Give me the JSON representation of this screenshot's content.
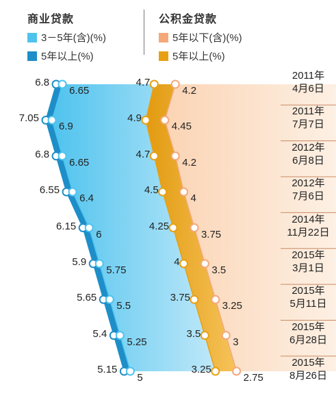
{
  "legend": {
    "commercial": {
      "title": "商业贷款",
      "items": [
        {
          "label": "3－5年(含)(%)",
          "color": "#4fc3ee"
        },
        {
          "label": "5年以上(%)",
          "color": "#1e8ec8"
        }
      ]
    },
    "provident": {
      "title": "公积金贷款",
      "items": [
        {
          "label": "5年以下(含)(%)",
          "color": "#f5a878"
        },
        {
          "label": "5年以上(%)",
          "color": "#e8a013"
        }
      ]
    }
  },
  "chart_data": {
    "type": "line",
    "orientation": "vertical",
    "categories": [
      [
        "2011年",
        "4月6日"
      ],
      [
        "2011年",
        "7月7日"
      ],
      [
        "2012年",
        "6月8日"
      ],
      [
        "2012年",
        "7月6日"
      ],
      [
        "2014年",
        "11月22日"
      ],
      [
        "2015年",
        "3月1日"
      ],
      [
        "2015年",
        "5月11日"
      ],
      [
        "2015年",
        "6月28日"
      ],
      [
        "2015年",
        "8月26日"
      ]
    ],
    "series": [
      {
        "name": "商业贷款 5年以上(%)",
        "values": [
          6.8,
          7.05,
          6.8,
          6.55,
          6.15,
          5.9,
          5.65,
          5.4,
          5.15
        ],
        "color": "#1e8ec8"
      },
      {
        "name": "商业贷款 3－5年(含)(%)",
        "values": [
          6.65,
          6.9,
          6.65,
          6.4,
          6,
          5.75,
          5.5,
          5.25,
          5
        ],
        "color": "#4fc3ee"
      },
      {
        "name": "公积金贷款 5年以上(%)",
        "values": [
          4.7,
          4.9,
          4.7,
          4.5,
          4.25,
          4,
          3.75,
          3.5,
          3.25
        ],
        "color": "#e8a013"
      },
      {
        "name": "公积金贷款 5年以下(含)(%)",
        "values": [
          4.2,
          4.45,
          4.2,
          4,
          3.75,
          3.5,
          3.25,
          3,
          2.75
        ],
        "color": "#f5a878"
      }
    ],
    "value_labels": {
      "s0": [
        "6.8",
        "7.05",
        "6.8",
        "6.55",
        "6.15",
        "5.9",
        "5.65",
        "5.4",
        "5.15"
      ],
      "s1": [
        "6.65",
        "6.9",
        "6.65",
        "6.4",
        "6",
        "5.75",
        "5.5",
        "5.25",
        "5"
      ],
      "s2": [
        "4.7",
        "4.9",
        "4.7",
        "4.5",
        "4.25",
        "4",
        "3.75",
        "3.5",
        "3.25"
      ],
      "s3": [
        "4.2",
        "4.45",
        "4.2",
        "4",
        "3.75",
        "3.5",
        "3.25",
        "3",
        "2.75"
      ]
    }
  }
}
